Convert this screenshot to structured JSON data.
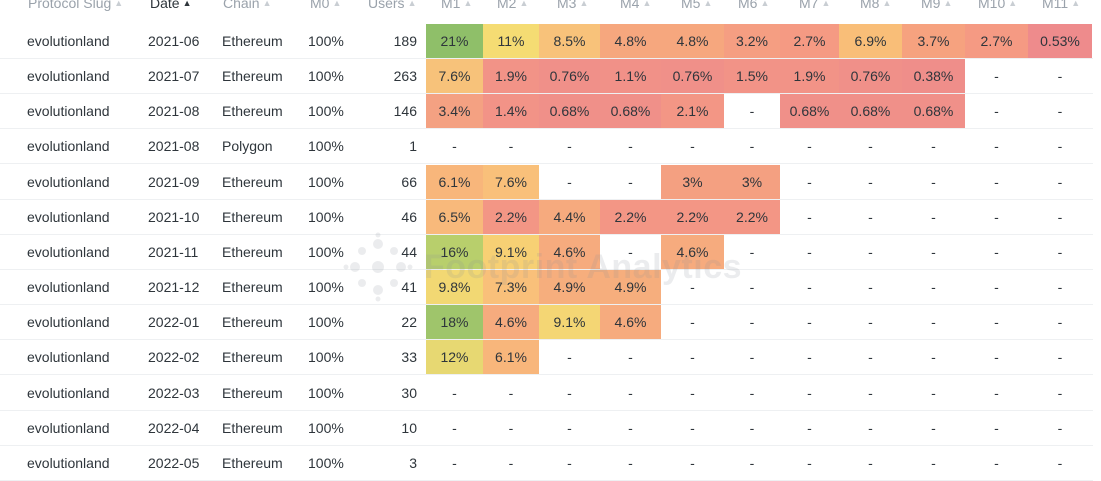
{
  "table": {
    "columns": [
      {
        "label": "Protocol Slug",
        "sort": "none"
      },
      {
        "label": "Date",
        "sort": "asc"
      },
      {
        "label": "Chain",
        "sort": "none"
      },
      {
        "label": "M0",
        "sort": "none"
      },
      {
        "label": "Users",
        "sort": "none"
      },
      {
        "label": "M1",
        "sort": "none"
      },
      {
        "label": "M2",
        "sort": "none"
      },
      {
        "label": "M3",
        "sort": "none"
      },
      {
        "label": "M4",
        "sort": "none"
      },
      {
        "label": "M5",
        "sort": "none"
      },
      {
        "label": "M6",
        "sort": "none"
      },
      {
        "label": "M7",
        "sort": "none"
      },
      {
        "label": "M8",
        "sort": "none"
      },
      {
        "label": "M9",
        "sort": "none"
      },
      {
        "label": "M10",
        "sort": "none"
      },
      {
        "label": "M11",
        "sort": "none"
      }
    ],
    "rows": [
      {
        "protocol": "evolutionland",
        "date": "2021-06",
        "chain": "Ethereum",
        "m0": "100%",
        "users": "189",
        "m": [
          "21%",
          "11%",
          "8.5%",
          "4.8%",
          "4.8%",
          "3.2%",
          "2.7%",
          "6.9%",
          "3.7%",
          "2.7%",
          "0.53%"
        ],
        "bg": [
          "#8fbf69",
          "#f5dc73",
          "#f8c27a",
          "#f6a77e",
          "#f6a77e",
          "#f59e82",
          "#f59a83",
          "#f9be78",
          "#f6a27f",
          "#f59a83",
          "#ee8b8c"
        ]
      },
      {
        "protocol": "evolutionland",
        "date": "2021-07",
        "chain": "Ethereum",
        "m0": "100%",
        "users": "263",
        "m": [
          "7.6%",
          "1.9%",
          "0.76%",
          "1.1%",
          "0.76%",
          "1.5%",
          "1.9%",
          "0.76%",
          "0.38%",
          "-",
          "-"
        ],
        "bg": [
          "#f7c27a",
          "#f29387",
          "#f09089",
          "#f19188",
          "#f09089",
          "#f29387",
          "#f29387",
          "#f09089",
          "#ef8e8a",
          null,
          null
        ]
      },
      {
        "protocol": "evolutionland",
        "date": "2021-08",
        "chain": "Ethereum",
        "m0": "100%",
        "users": "146",
        "m": [
          "3.4%",
          "1.4%",
          "0.68%",
          "0.68%",
          "2.1%",
          "-",
          "0.68%",
          "0.68%",
          "0.68%",
          "-",
          "-"
        ],
        "bg": [
          "#f4a182",
          "#f29387",
          "#f09089",
          "#f09089",
          "#f39685",
          null,
          "#f09089",
          "#f09089",
          "#f09089",
          null,
          null
        ]
      },
      {
        "protocol": "evolutionland",
        "date": "2021-08",
        "chain": "Polygon",
        "m0": "100%",
        "users": "1",
        "m": [
          "-",
          "-",
          "-",
          "-",
          "-",
          "-",
          "-",
          "-",
          "-",
          "-",
          "-"
        ],
        "bg": [
          null,
          null,
          null,
          null,
          null,
          null,
          null,
          null,
          null,
          null,
          null
        ]
      },
      {
        "protocol": "evolutionland",
        "date": "2021-09",
        "chain": "Ethereum",
        "m0": "100%",
        "users": "66",
        "m": [
          "6.1%",
          "7.6%",
          "-",
          "-",
          "3%",
          "3%",
          "-",
          "-",
          "-",
          "-",
          "-"
        ],
        "bg": [
          "#f8b67b",
          "#f9c07a",
          null,
          null,
          "#f4a081",
          "#f4a081",
          null,
          null,
          null,
          null,
          null
        ]
      },
      {
        "protocol": "evolutionland",
        "date": "2021-10",
        "chain": "Ethereum",
        "m0": "100%",
        "users": "46",
        "m": [
          "6.5%",
          "2.2%",
          "4.4%",
          "2.2%",
          "2.2%",
          "2.2%",
          "-",
          "-",
          "-",
          "-",
          "-"
        ],
        "bg": [
          "#f8b97b",
          "#f39685",
          "#f6aa7e",
          "#f39685",
          "#f39685",
          "#f39685",
          null,
          null,
          null,
          null,
          null
        ]
      },
      {
        "protocol": "evolutionland",
        "date": "2021-11",
        "chain": "Ethereum",
        "m0": "100%",
        "users": "44",
        "m": [
          "16%",
          "9.1%",
          "4.6%",
          "-",
          "4.6%",
          "-",
          "-",
          "-",
          "-",
          "-",
          "-"
        ],
        "bg": [
          "#b8cf6c",
          "#f7d074",
          "#f6ab7e",
          null,
          "#f6ab7e",
          null,
          null,
          null,
          null,
          null,
          null
        ]
      },
      {
        "protocol": "evolutionland",
        "date": "2021-12",
        "chain": "Ethereum",
        "m0": "100%",
        "users": "41",
        "m": [
          "9.8%",
          "7.3%",
          "4.9%",
          "4.9%",
          "-",
          "-",
          "-",
          "-",
          "-",
          "-",
          "-"
        ],
        "bg": [
          "#f2d873",
          "#f9c07a",
          "#f6ae7d",
          "#f6ae7d",
          null,
          null,
          null,
          null,
          null,
          null,
          null
        ]
      },
      {
        "protocol": "evolutionland",
        "date": "2022-01",
        "chain": "Ethereum",
        "m0": "100%",
        "users": "22",
        "m": [
          "18%",
          "4.6%",
          "9.1%",
          "4.6%",
          "-",
          "-",
          "-",
          "-",
          "-",
          "-",
          "-"
        ],
        "bg": [
          "#9fc56b",
          "#f6ab7e",
          "#f4d674",
          "#f6ab7e",
          null,
          null,
          null,
          null,
          null,
          null,
          null
        ]
      },
      {
        "protocol": "evolutionland",
        "date": "2022-02",
        "chain": "Ethereum",
        "m0": "100%",
        "users": "33",
        "m": [
          "12%",
          "6.1%",
          "-",
          "-",
          "-",
          "-",
          "-",
          "-",
          "-",
          "-",
          "-"
        ],
        "bg": [
          "#e7d872",
          "#f8b67b",
          null,
          null,
          null,
          null,
          null,
          null,
          null,
          null,
          null
        ]
      },
      {
        "protocol": "evolutionland",
        "date": "2022-03",
        "chain": "Ethereum",
        "m0": "100%",
        "users": "30",
        "m": [
          "-",
          "-",
          "-",
          "-",
          "-",
          "-",
          "-",
          "-",
          "-",
          "-",
          "-"
        ],
        "bg": [
          null,
          null,
          null,
          null,
          null,
          null,
          null,
          null,
          null,
          null,
          null
        ]
      },
      {
        "protocol": "evolutionland",
        "date": "2022-04",
        "chain": "Ethereum",
        "m0": "100%",
        "users": "10",
        "m": [
          "-",
          "-",
          "-",
          "-",
          "-",
          "-",
          "-",
          "-",
          "-",
          "-",
          "-"
        ],
        "bg": [
          null,
          null,
          null,
          null,
          null,
          null,
          null,
          null,
          null,
          null,
          null
        ]
      },
      {
        "protocol": "evolutionland",
        "date": "2022-05",
        "chain": "Ethereum",
        "m0": "100%",
        "users": "3",
        "m": [
          "-",
          "-",
          "-",
          "-",
          "-",
          "-",
          "-",
          "-",
          "-",
          "-",
          "-"
        ],
        "bg": [
          null,
          null,
          null,
          null,
          null,
          null,
          null,
          null,
          null,
          null,
          null
        ]
      }
    ]
  },
  "watermark": {
    "text": "Footprint Analytics",
    "icon": "footprint-logo-icon"
  }
}
